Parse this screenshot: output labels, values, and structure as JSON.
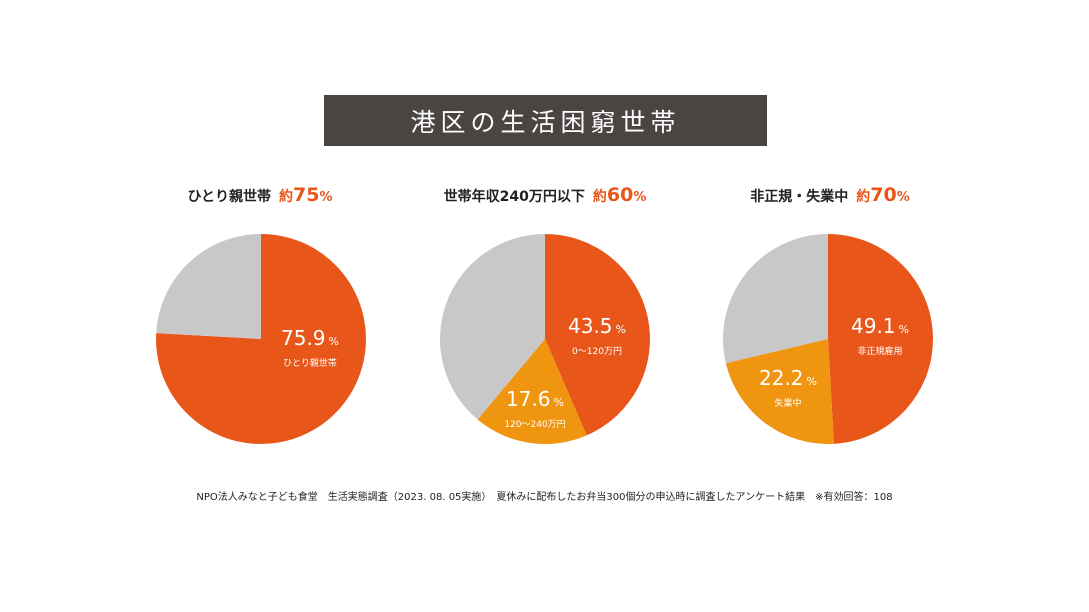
{
  "title": "港区の生活困窮世帯",
  "colors": {
    "primary": "#e8561a",
    "secondary": "#f0950f",
    "rest": "#c8c8c9",
    "title_bg": "#4a4542"
  },
  "chart_data": [
    {
      "type": "pie",
      "title": "ひとり親世帯",
      "highlight": {
        "prefix": "約",
        "number": "75",
        "unit": "%"
      },
      "slices": [
        {
          "label": "ひとり親世帯",
          "value": 75.9,
          "value_text": "75.9",
          "unit": "%",
          "color": "#e8561a",
          "labeled": true
        },
        {
          "label": "",
          "value": 24.1,
          "color": "#c8c8c9",
          "labeled": false
        }
      ]
    },
    {
      "type": "pie",
      "title": "世帯年収240万円以下",
      "highlight": {
        "prefix": "約",
        "number": "60",
        "unit": "%"
      },
      "slices": [
        {
          "label": "0～120万円",
          "value": 43.5,
          "value_text": "43.5",
          "unit": "%",
          "color": "#e8561a",
          "labeled": true
        },
        {
          "label": "120～240万円",
          "value": 17.6,
          "value_text": "17.6",
          "unit": "%",
          "color": "#f0950f",
          "labeled": true
        },
        {
          "label": "",
          "value": 38.9,
          "color": "#c8c8c9",
          "labeled": false
        }
      ]
    },
    {
      "type": "pie",
      "title": "非正規・失業中",
      "highlight": {
        "prefix": "約",
        "number": "70",
        "unit": "%"
      },
      "slices": [
        {
          "label": "非正規雇用",
          "value": 49.1,
          "value_text": "49.1",
          "unit": "%",
          "color": "#e8561a",
          "labeled": true
        },
        {
          "label": "失業中",
          "value": 22.2,
          "value_text": "22.2",
          "unit": "%",
          "color": "#f0950f",
          "labeled": true
        },
        {
          "label": "",
          "value": 28.7,
          "color": "#c8c8c9",
          "labeled": false
        }
      ]
    }
  ],
  "footnote": "NPO法人みなと子ども食堂　生活実態調査（2023. 08. 05実施）　夏休みに配布したお弁当300個分の申込時に調査したアンケート結果　※有効回答：108"
}
